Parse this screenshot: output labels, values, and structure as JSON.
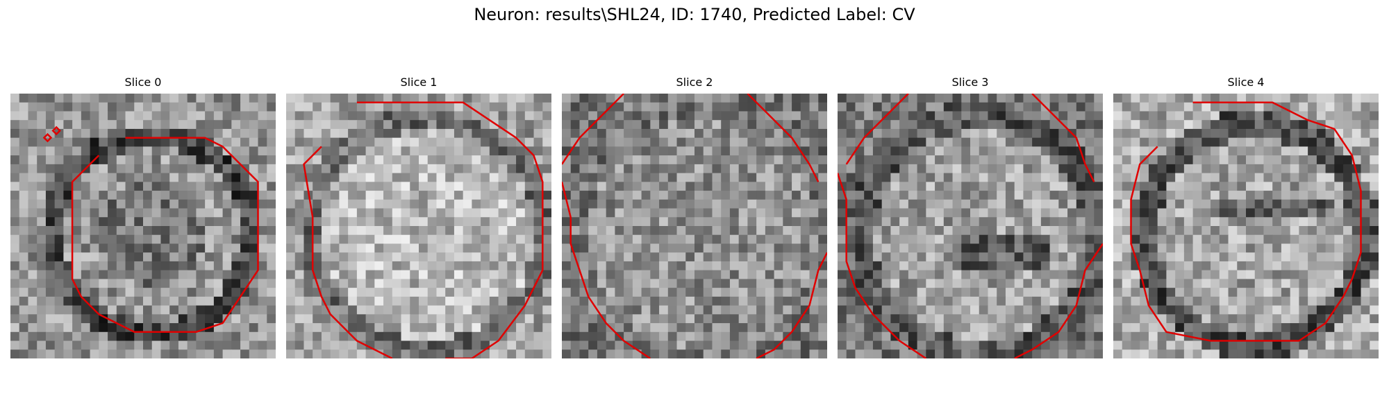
{
  "figure": {
    "title": "Neuron: results\\SHL24, ID: 1740, Predicted Label: CV"
  },
  "panels": [
    {
      "title": "Slice 0"
    },
    {
      "title": "Slice 1"
    },
    {
      "title": "Slice 2"
    },
    {
      "title": "Slice 3"
    },
    {
      "title": "Slice 4"
    }
  ],
  "contour_color": "#e00000",
  "colormap": "grayscale"
}
